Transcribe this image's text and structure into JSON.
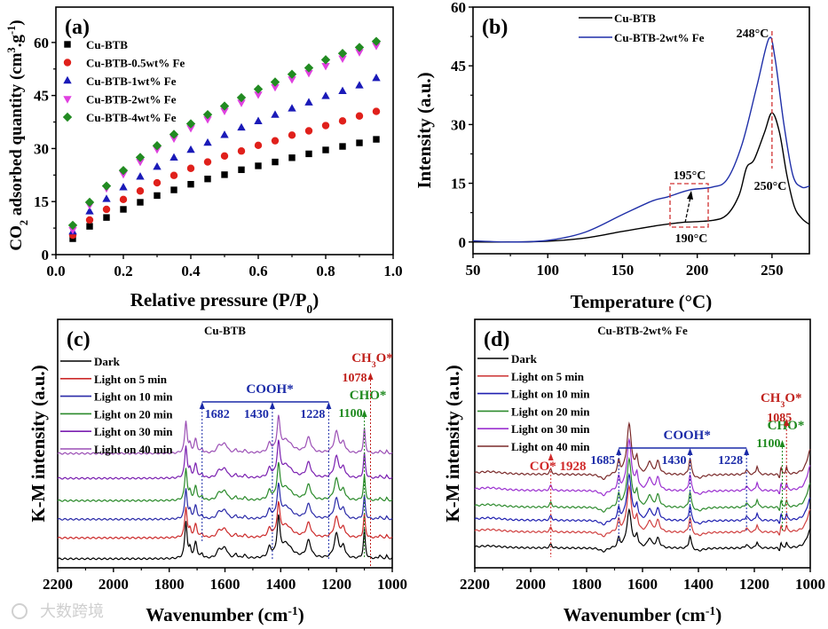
{
  "watermark": "大数跨境",
  "chart_data": [
    {
      "panel_label": "(a)",
      "type": "scatter",
      "xlabel_parts": [
        "Relative pressure (P/P",
        "0",
        ")"
      ],
      "ylabel_parts": [
        "CO",
        "2",
        " adsorbed quantity (cm",
        "3",
        ".g",
        "-1",
        ")"
      ],
      "xlim": [
        0,
        1.0
      ],
      "ylim": [
        0,
        70
      ],
      "xticks": [
        0.0,
        0.2,
        0.4,
        0.6,
        0.8,
        1.0
      ],
      "xtick_labels": [
        "0.0",
        "0.2",
        "0.4",
        "0.6",
        "0.8",
        "1.0"
      ],
      "yticks": [
        0,
        15,
        30,
        45,
        60
      ],
      "ytick_labels": [
        "0",
        "15",
        "30",
        "45",
        "60"
      ],
      "legend_position": "top-left",
      "x": [
        0.05,
        0.1,
        0.15,
        0.2,
        0.25,
        0.3,
        0.35,
        0.4,
        0.45,
        0.5,
        0.55,
        0.6,
        0.65,
        0.7,
        0.75,
        0.8,
        0.85,
        0.9,
        0.95
      ],
      "series": [
        {
          "name": "Cu-BTB",
          "marker": "square",
          "color": "#000000",
          "values": [
            4.5,
            8.0,
            10.5,
            12.8,
            14.8,
            16.7,
            18.3,
            19.9,
            21.4,
            22.6,
            24.0,
            25.1,
            26.2,
            27.4,
            28.5,
            29.6,
            30.6,
            31.6,
            32.6
          ]
        },
        {
          "name": "Cu-BTB-0.5wt% Fe",
          "marker": "circle",
          "color": "#e0201b",
          "values": [
            5.5,
            9.8,
            12.8,
            15.6,
            18.0,
            20.3,
            22.4,
            24.4,
            26.2,
            27.9,
            29.3,
            30.9,
            32.2,
            33.8,
            35.0,
            36.5,
            37.8,
            39.2,
            40.5
          ]
        },
        {
          "name": "Cu-BTB-1wt% Fe",
          "marker": "triangle-up",
          "color": "#1a1ab8",
          "values": [
            6.5,
            12.2,
            15.7,
            19.0,
            22.0,
            24.8,
            27.4,
            29.6,
            31.6,
            33.8,
            35.9,
            37.7,
            39.5,
            41.3,
            43.0,
            44.8,
            46.2,
            47.8,
            49.9
          ]
        },
        {
          "name": "Cu-BTB-2wt% Fe",
          "marker": "triangle-down",
          "color": "#e040e0",
          "values": [
            7.0,
            14.0,
            18.8,
            22.8,
            26.3,
            29.8,
            32.9,
            35.8,
            38.3,
            40.7,
            43.0,
            45.3,
            47.4,
            49.6,
            51.4,
            53.4,
            55.5,
            57.3,
            59.1
          ]
        },
        {
          "name": "Cu-BTB-4wt% Fe",
          "marker": "diamond",
          "color": "#228b22",
          "values": [
            8.3,
            14.8,
            19.4,
            23.8,
            27.5,
            30.8,
            34.0,
            37.0,
            39.6,
            42.0,
            44.4,
            46.8,
            48.8,
            51.0,
            52.8,
            55.1,
            56.9,
            58.6,
            60.3
          ]
        }
      ]
    },
    {
      "panel_label": "(b)",
      "type": "line",
      "xlabel": "Temperature (°C)",
      "ylabel": "Intensity (a.u.)",
      "xlim": [
        50,
        275
      ],
      "ylim": [
        -3,
        60
      ],
      "xticks": [
        50,
        100,
        150,
        200,
        250
      ],
      "xtick_labels": [
        "50",
        "100",
        "150",
        "200",
        "250"
      ],
      "yticks": [
        0,
        15,
        30,
        45,
        60
      ],
      "ytick_labels": [
        "0",
        "15",
        "30",
        "45",
        "60"
      ],
      "legend_position": "top-center",
      "series": [
        {
          "name": "Cu-BTB",
          "color": "#000000",
          "points": [
            [
              50,
              0
            ],
            [
              75,
              0
            ],
            [
              100,
              0.2
            ],
            [
              125,
              1.0
            ],
            [
              150,
              2.7
            ],
            [
              175,
              4.3
            ],
            [
              190,
              5.0
            ],
            [
              210,
              5.5
            ],
            [
              220,
              7.0
            ],
            [
              228,
              12
            ],
            [
              233,
              19
            ],
            [
              238,
              21
            ],
            [
              245,
              28
            ],
            [
              250,
              33
            ],
            [
              255,
              28
            ],
            [
              260,
              17
            ],
            [
              265,
              9
            ],
            [
              270,
              6
            ],
            [
              275,
              4.5
            ]
          ]
        },
        {
          "name": "Cu-BTB-2wt% Fe",
          "color": "#1f2fa8",
          "points": [
            [
              50,
              0.3
            ],
            [
              75,
              0
            ],
            [
              100,
              0.4
            ],
            [
              125,
              2.5
            ],
            [
              150,
              7
            ],
            [
              170,
              10.5
            ],
            [
              180,
              11.5
            ],
            [
              195,
              13.3
            ],
            [
              210,
              14
            ],
            [
              220,
              16
            ],
            [
              230,
              25
            ],
            [
              240,
              40
            ],
            [
              248,
              52
            ],
            [
              252,
              47
            ],
            [
              258,
              30
            ],
            [
              264,
              17
            ],
            [
              270,
              14
            ],
            [
              275,
              14.3
            ]
          ]
        }
      ],
      "annotations": {
        "peak_2wt": "248°C",
        "peak_cubtb": "250°C",
        "shoulder_2wt": "195°C",
        "shoulder_cubtb": "190°C"
      },
      "reference_line_x": 250
    },
    {
      "panel_label": "(c)",
      "type": "line",
      "title": "Cu-BTB",
      "xlabel_parts": [
        "Wavenumber (cm",
        "-1",
        ")"
      ],
      "ylabel": "K-M intensity (a.u.)",
      "xlim": [
        2200,
        1000
      ],
      "ylim": [
        0,
        10
      ],
      "xticks": [
        2200,
        2000,
        1800,
        1600,
        1400,
        1200,
        1000
      ],
      "xtick_labels": [
        "2200",
        "2000",
        "1800",
        "1600",
        "1400",
        "1200",
        "1000"
      ],
      "legend_position": "top-left",
      "peaks": [
        [
          1740,
          1.3,
          5
        ],
        [
          1725,
          0.3,
          4
        ],
        [
          1705,
          0.55,
          6
        ],
        [
          1682,
          0.15,
          4
        ],
        [
          1620,
          0.3,
          10
        ],
        [
          1600,
          0.35,
          10
        ],
        [
          1560,
          0.15,
          5
        ],
        [
          1530,
          0.12,
          5
        ],
        [
          1440,
          0.35,
          7
        ],
        [
          1408,
          1.3,
          6
        ],
        [
          1380,
          0.5,
          25
        ],
        [
          1300,
          0.6,
          10
        ],
        [
          1200,
          0.85,
          10
        ],
        [
          1175,
          0.4,
          7
        ],
        [
          1100,
          1.0,
          4
        ],
        [
          1045,
          0.12,
          4
        ],
        [
          1020,
          0.1,
          3
        ]
      ],
      "series": [
        {
          "name": "Dark",
          "color": "#000000",
          "offset": 0.36,
          "scale": 1.15
        },
        {
          "name": "Light on 5 min",
          "color": "#cc2a2a",
          "offset": 1.2,
          "scale": 0.95
        },
        {
          "name": "Light on 10 min",
          "color": "#2a2aa8",
          "offset": 1.95,
          "scale": 0.95
        },
        {
          "name": "Light on 20 min",
          "color": "#2a8a2a",
          "offset": 2.7,
          "scale": 1.0
        },
        {
          "name": "Light on 30 min",
          "color": "#7a1fb0",
          "offset": 3.6,
          "scale": 1.0
        },
        {
          "name": "Light on 40 min",
          "color": "#9b4fb5",
          "offset": 4.6,
          "scale": 1.0
        }
      ],
      "annotations": {
        "cooh": {
          "label": "COOH*",
          "bands": [
            "1682",
            "1430",
            "1228"
          ],
          "color": "#1a2aa8"
        },
        "cho": {
          "label": "CHO*",
          "band": "1100",
          "color": "#1f8a1f"
        },
        "ch3o": {
          "label_parts": [
            "CH",
            "3",
            "O*"
          ],
          "band": "1078",
          "color": "#c0201b"
        }
      }
    },
    {
      "panel_label": "(d)",
      "type": "line",
      "title": "Cu-BTB-2wt% Fe",
      "xlabel_parts": [
        "Wavenumber (cm",
        "-1",
        ")"
      ],
      "ylabel": "K-M intensity (a.u.)",
      "xlim": [
        2200,
        1000
      ],
      "ylim": [
        0,
        10
      ],
      "xticks": [
        2200,
        2000,
        1800,
        1600,
        1400,
        1200,
        1000
      ],
      "xtick_labels": [
        "2200",
        "2000",
        "1800",
        "1600",
        "1400",
        "1200",
        "1000"
      ],
      "legend_position": "top-left",
      "peaks": [
        [
          2150,
          0.12,
          60
        ],
        [
          1928,
          0.2,
          5
        ],
        [
          1740,
          -0.2,
          15
        ],
        [
          1685,
          0.5,
          5
        ],
        [
          1648,
          2.0,
          10
        ],
        [
          1620,
          0.6,
          5
        ],
        [
          1575,
          0.5,
          8
        ],
        [
          1545,
          0.5,
          8
        ],
        [
          1430,
          0.7,
          5
        ],
        [
          1400,
          -0.15,
          20
        ],
        [
          1228,
          0.2,
          5
        ],
        [
          1190,
          0.35,
          4
        ],
        [
          1110,
          -0.2,
          4
        ],
        [
          1105,
          0.35,
          3
        ],
        [
          1085,
          0.3,
          3
        ],
        [
          1000,
          1.0,
          14
        ]
      ],
      "series": [
        {
          "name": "Dark",
          "color": "#000000",
          "offset": 0.79,
          "scale": 0.75
        },
        {
          "name": "Light on 5 min",
          "color": "#d04040",
          "offset": 1.43,
          "scale": 0.9
        },
        {
          "name": "Light on 10 min",
          "color": "#1f1fb0",
          "offset": 1.9,
          "scale": 0.9
        },
        {
          "name": "Light on 20 min",
          "color": "#2e8b2e",
          "offset": 2.43,
          "scale": 0.95
        },
        {
          "name": "Light on 30 min",
          "color": "#9b30d0",
          "offset": 3.1,
          "scale": 1.0
        },
        {
          "name": "Light on 40 min",
          "color": "#7a2a2a",
          "offset": 3.75,
          "scale": 1.0
        }
      ],
      "annotations": {
        "co": {
          "label": "CO* 1928",
          "color": "#d02a2a"
        },
        "cooh": {
          "label": "COOH*",
          "bands": [
            "1685",
            "1430",
            "1228"
          ],
          "color": "#1a2aa8"
        },
        "cho": {
          "label": "CHO*",
          "band": "1100",
          "color": "#1f8a1f"
        },
        "ch3o": {
          "label_parts": [
            "CH",
            "3",
            "O*"
          ],
          "band": "1085",
          "color": "#c0201b"
        }
      }
    }
  ]
}
